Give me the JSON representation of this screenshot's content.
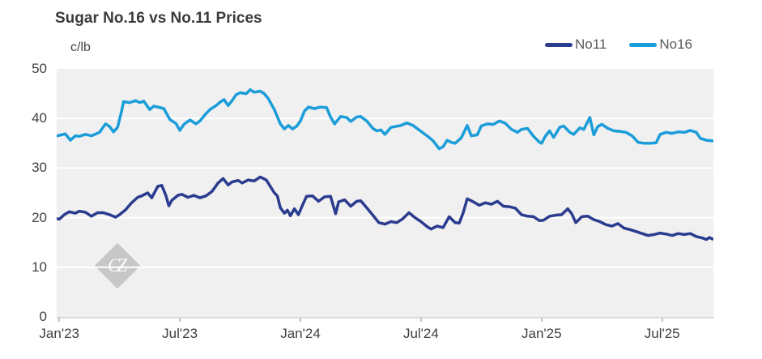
{
  "chart_data": {
    "type": "line",
    "title": "Sugar No.16 vs No.11 Prices",
    "unit_label": "c/lb",
    "watermark": "CZ",
    "x_axis": {
      "tick_positions_months": [
        0,
        6,
        12,
        18,
        24,
        30
      ],
      "tick_labels": [
        "Jan'23",
        "Jul'23",
        "Jan'24",
        "Jul'24",
        "Jan'25",
        "Jul'25"
      ],
      "range_months": [
        -0.13,
        32.55
      ]
    },
    "y_axis": {
      "ticks": [
        0,
        10,
        20,
        30,
        40,
        50
      ],
      "range": [
        0,
        50
      ],
      "gridlines_at": [
        10,
        20,
        30,
        40
      ]
    },
    "legend": {
      "position": "top-right",
      "entries": [
        "No11",
        "No16"
      ]
    },
    "series": [
      {
        "name": "No11",
        "color": "#2b3c8f",
        "points": [
          [
            -0.13,
            19.8
          ],
          [
            0,
            19.7
          ],
          [
            0.25,
            20.6
          ],
          [
            0.5,
            21.2
          ],
          [
            0.8,
            20.9
          ],
          [
            1,
            21.3
          ],
          [
            1.3,
            21.1
          ],
          [
            1.6,
            20.3
          ],
          [
            1.9,
            21
          ],
          [
            2.2,
            21
          ],
          [
            2.5,
            20.6
          ],
          [
            2.8,
            20.1
          ],
          [
            3,
            20.6
          ],
          [
            3.3,
            21.6
          ],
          [
            3.6,
            23
          ],
          [
            3.9,
            24.1
          ],
          [
            4.1,
            24.4
          ],
          [
            4.4,
            25
          ],
          [
            4.6,
            24
          ],
          [
            4.9,
            26.3
          ],
          [
            5.1,
            26.5
          ],
          [
            5.3,
            24.5
          ],
          [
            5.45,
            22.4
          ],
          [
            5.6,
            23.5
          ],
          [
            5.9,
            24.5
          ],
          [
            6.1,
            24.7
          ],
          [
            6.4,
            24.1
          ],
          [
            6.7,
            24.5
          ],
          [
            7,
            24
          ],
          [
            7.3,
            24.4
          ],
          [
            7.6,
            25.3
          ],
          [
            7.9,
            27
          ],
          [
            8.15,
            27.9
          ],
          [
            8.4,
            26.6
          ],
          [
            8.6,
            27.2
          ],
          [
            8.9,
            27.5
          ],
          [
            9.1,
            27
          ],
          [
            9.4,
            27.6
          ],
          [
            9.7,
            27.4
          ],
          [
            10,
            28.2
          ],
          [
            10.3,
            27.6
          ],
          [
            10.5,
            26.3
          ],
          [
            10.7,
            25
          ],
          [
            10.85,
            24.4
          ],
          [
            11,
            22
          ],
          [
            11.2,
            20.9
          ],
          [
            11.35,
            21.5
          ],
          [
            11.5,
            20.4
          ],
          [
            11.7,
            21.8
          ],
          [
            11.9,
            20.6
          ],
          [
            12.1,
            22.5
          ],
          [
            12.3,
            24.3
          ],
          [
            12.6,
            24.4
          ],
          [
            12.9,
            23.3
          ],
          [
            13.2,
            24.2
          ],
          [
            13.5,
            24.3
          ],
          [
            13.75,
            20.8
          ],
          [
            13.9,
            23.2
          ],
          [
            14.2,
            23.6
          ],
          [
            14.5,
            22.3
          ],
          [
            14.8,
            23.3
          ],
          [
            15,
            23.4
          ],
          [
            15.3,
            22
          ],
          [
            15.6,
            20.5
          ],
          [
            15.9,
            19
          ],
          [
            16.2,
            18.7
          ],
          [
            16.5,
            19.2
          ],
          [
            16.8,
            19
          ],
          [
            17.1,
            19.8
          ],
          [
            17.4,
            21
          ],
          [
            17.7,
            20
          ],
          [
            18,
            19.2
          ],
          [
            18.3,
            18.2
          ],
          [
            18.5,
            17.7
          ],
          [
            18.8,
            18.3
          ],
          [
            19.1,
            18
          ],
          [
            19.4,
            20.2
          ],
          [
            19.7,
            19
          ],
          [
            19.9,
            18.9
          ],
          [
            20.1,
            21
          ],
          [
            20.3,
            23.8
          ],
          [
            20.6,
            23.2
          ],
          [
            20.9,
            22.5
          ],
          [
            21.2,
            23
          ],
          [
            21.5,
            22.7
          ],
          [
            21.8,
            23.3
          ],
          [
            22.1,
            22.3
          ],
          [
            22.4,
            22.2
          ],
          [
            22.7,
            21.9
          ],
          [
            23,
            20.6
          ],
          [
            23.3,
            20.3
          ],
          [
            23.6,
            20.2
          ],
          [
            23.9,
            19.4
          ],
          [
            24.1,
            19.5
          ],
          [
            24.4,
            20.3
          ],
          [
            24.7,
            20.5
          ],
          [
            25,
            20.6
          ],
          [
            25.3,
            21.8
          ],
          [
            25.5,
            20.8
          ],
          [
            25.7,
            19
          ],
          [
            26,
            20.2
          ],
          [
            26.3,
            20.3
          ],
          [
            26.6,
            19.6
          ],
          [
            26.9,
            19.2
          ],
          [
            27.2,
            18.6
          ],
          [
            27.5,
            18.3
          ],
          [
            27.8,
            18.8
          ],
          [
            28.1,
            17.9
          ],
          [
            28.4,
            17.6
          ],
          [
            28.7,
            17.2
          ],
          [
            29,
            16.8
          ],
          [
            29.3,
            16.4
          ],
          [
            29.6,
            16.6
          ],
          [
            29.9,
            16.9
          ],
          [
            30.2,
            16.7
          ],
          [
            30.5,
            16.4
          ],
          [
            30.8,
            16.8
          ],
          [
            31.1,
            16.6
          ],
          [
            31.4,
            16.8
          ],
          [
            31.7,
            16.2
          ],
          [
            32,
            15.9
          ],
          [
            32.2,
            15.6
          ],
          [
            32.35,
            16
          ],
          [
            32.5,
            15.7
          ]
        ]
      },
      {
        "name": "No16",
        "color": "#1b9dd9",
        "points": [
          [
            -0.13,
            36.5
          ],
          [
            0,
            36.6
          ],
          [
            0.3,
            36.9
          ],
          [
            0.55,
            35.6
          ],
          [
            0.8,
            36.5
          ],
          [
            1,
            36.4
          ],
          [
            1.3,
            36.8
          ],
          [
            1.6,
            36.5
          ],
          [
            2,
            37.2
          ],
          [
            2.3,
            38.9
          ],
          [
            2.5,
            38.4
          ],
          [
            2.7,
            37.3
          ],
          [
            2.9,
            38.2
          ],
          [
            3.1,
            41.5
          ],
          [
            3.2,
            43.4
          ],
          [
            3.5,
            43.2
          ],
          [
            3.8,
            43.6
          ],
          [
            4,
            43.2
          ],
          [
            4.2,
            43.5
          ],
          [
            4.5,
            41.8
          ],
          [
            4.7,
            42.5
          ],
          [
            5,
            42.2
          ],
          [
            5.2,
            42
          ],
          [
            5.5,
            39.8
          ],
          [
            5.8,
            39
          ],
          [
            6,
            37.6
          ],
          [
            6.2,
            38.8
          ],
          [
            6.5,
            39.7
          ],
          [
            6.8,
            38.9
          ],
          [
            7,
            39.5
          ],
          [
            7.3,
            41
          ],
          [
            7.5,
            41.8
          ],
          [
            7.8,
            42.6
          ],
          [
            8,
            43.3
          ],
          [
            8.2,
            43.8
          ],
          [
            8.4,
            42.6
          ],
          [
            8.6,
            43.6
          ],
          [
            8.8,
            44.8
          ],
          [
            9,
            45.2
          ],
          [
            9.3,
            45
          ],
          [
            9.5,
            45.8
          ],
          [
            9.7,
            45.3
          ],
          [
            10,
            45.5
          ],
          [
            10.2,
            45
          ],
          [
            10.4,
            44
          ],
          [
            10.7,
            41.8
          ],
          [
            11,
            38.9
          ],
          [
            11.2,
            37.9
          ],
          [
            11.4,
            38.6
          ],
          [
            11.6,
            37.9
          ],
          [
            11.8,
            38.4
          ],
          [
            12,
            39.5
          ],
          [
            12.2,
            41.5
          ],
          [
            12.4,
            42.3
          ],
          [
            12.7,
            42
          ],
          [
            13,
            42.3
          ],
          [
            13.3,
            42.2
          ],
          [
            13.5,
            40.3
          ],
          [
            13.7,
            38.9
          ],
          [
            14,
            40.4
          ],
          [
            14.3,
            40.2
          ],
          [
            14.5,
            39.4
          ],
          [
            14.8,
            40.3
          ],
          [
            15,
            40.4
          ],
          [
            15.3,
            39.5
          ],
          [
            15.6,
            38
          ],
          [
            15.8,
            37.5
          ],
          [
            16,
            37.7
          ],
          [
            16.2,
            36.8
          ],
          [
            16.5,
            38.2
          ],
          [
            17,
            38.6
          ],
          [
            17.3,
            39.1
          ],
          [
            17.6,
            38.6
          ],
          [
            18,
            37.4
          ],
          [
            18.3,
            36.5
          ],
          [
            18.6,
            35.5
          ],
          [
            18.9,
            33.9
          ],
          [
            19.1,
            34.3
          ],
          [
            19.3,
            35.6
          ],
          [
            19.5,
            35.2
          ],
          [
            19.7,
            35
          ],
          [
            20,
            36.1
          ],
          [
            20.3,
            38.6
          ],
          [
            20.5,
            36.5
          ],
          [
            20.8,
            36.7
          ],
          [
            21,
            38.5
          ],
          [
            21.3,
            38.9
          ],
          [
            21.6,
            38.8
          ],
          [
            21.9,
            39.5
          ],
          [
            22.2,
            39
          ],
          [
            22.5,
            37.8
          ],
          [
            22.8,
            37.2
          ],
          [
            23,
            37.8
          ],
          [
            23.3,
            38
          ],
          [
            23.6,
            36.4
          ],
          [
            23.9,
            35.2
          ],
          [
            24,
            35
          ],
          [
            24.2,
            36.5
          ],
          [
            24.4,
            37.5
          ],
          [
            24.6,
            36.2
          ],
          [
            24.9,
            38.2
          ],
          [
            25.1,
            38.5
          ],
          [
            25.4,
            37.2
          ],
          [
            25.6,
            36.8
          ],
          [
            25.9,
            38.1
          ],
          [
            26.1,
            37.8
          ],
          [
            26.4,
            40.2
          ],
          [
            26.6,
            36.7
          ],
          [
            26.8,
            38.4
          ],
          [
            27,
            38.8
          ],
          [
            27.3,
            38
          ],
          [
            27.6,
            37.5
          ],
          [
            27.9,
            37.4
          ],
          [
            28.2,
            37.2
          ],
          [
            28.5,
            36.5
          ],
          [
            28.8,
            35.2
          ],
          [
            29.1,
            35
          ],
          [
            29.4,
            35
          ],
          [
            29.7,
            35.1
          ],
          [
            29.9,
            36.8
          ],
          [
            30.2,
            37.2
          ],
          [
            30.5,
            37
          ],
          [
            30.8,
            37.3
          ],
          [
            31.1,
            37.2
          ],
          [
            31.4,
            37.6
          ],
          [
            31.7,
            37.2
          ],
          [
            31.9,
            36
          ],
          [
            32.2,
            35.6
          ],
          [
            32.5,
            35.5
          ]
        ]
      }
    ]
  },
  "ui_colors": {
    "page_bg": "#ffffff",
    "plot_bg": "#f0f0f0",
    "gridline": "#ffffff",
    "axis_line": "#dadada",
    "tick_mark": "#c2c2c2",
    "axis_text": "#404040",
    "title_text": "#3a3a3a",
    "legend_text": "#595959",
    "watermark_bg": "#c7c7c7",
    "watermark_text": "#ffffff"
  }
}
